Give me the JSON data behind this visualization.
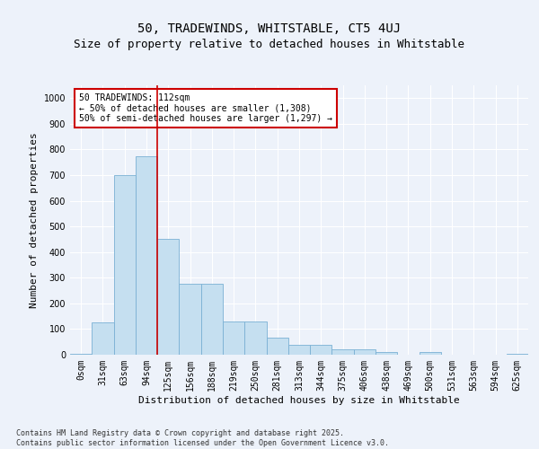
{
  "title1": "50, TRADEWINDS, WHITSTABLE, CT5 4UJ",
  "title2": "Size of property relative to detached houses in Whitstable",
  "xlabel": "Distribution of detached houses by size in Whitstable",
  "ylabel": "Number of detached properties",
  "bar_color": "#c5dff0",
  "bar_edge_color": "#7ab0d4",
  "background_color": "#edf2fa",
  "grid_color": "#ffffff",
  "bin_labels": [
    "0sqm",
    "31sqm",
    "63sqm",
    "94sqm",
    "125sqm",
    "156sqm",
    "188sqm",
    "219sqm",
    "250sqm",
    "281sqm",
    "313sqm",
    "344sqm",
    "375sqm",
    "406sqm",
    "438sqm",
    "469sqm",
    "500sqm",
    "531sqm",
    "563sqm",
    "594sqm",
    "625sqm"
  ],
  "bar_heights": [
    5,
    125,
    700,
    775,
    450,
    275,
    275,
    130,
    130,
    65,
    38,
    38,
    20,
    20,
    10,
    0,
    10,
    0,
    0,
    0,
    5
  ],
  "ylim": [
    0,
    1050
  ],
  "yticks": [
    0,
    100,
    200,
    300,
    400,
    500,
    600,
    700,
    800,
    900,
    1000
  ],
  "vline_x": 3.5,
  "annotation_text": "50 TRADEWINDS: 112sqm\n← 50% of detached houses are smaller (1,308)\n50% of semi-detached houses are larger (1,297) →",
  "annotation_box_color": "#ffffff",
  "annotation_border_color": "#cc0000",
  "footnote": "Contains HM Land Registry data © Crown copyright and database right 2025.\nContains public sector information licensed under the Open Government Licence v3.0.",
  "vline_color": "#cc0000",
  "title_fontsize": 10,
  "subtitle_fontsize": 9,
  "axis_label_fontsize": 8,
  "tick_fontsize": 7,
  "annot_fontsize": 7
}
